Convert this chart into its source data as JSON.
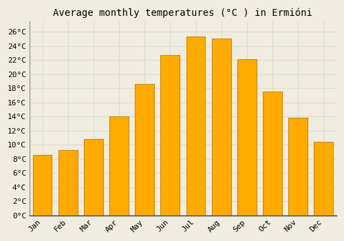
{
  "title": "Average monthly temperatures (°C ) in Ermióni",
  "months": [
    "Jan",
    "Feb",
    "Mar",
    "Apr",
    "May",
    "Jun",
    "Jul",
    "Aug",
    "Sep",
    "Oct",
    "Nov",
    "Dec"
  ],
  "temperatures": [
    8.6,
    9.2,
    10.8,
    14.0,
    18.6,
    22.7,
    25.3,
    25.1,
    22.1,
    17.5,
    13.8,
    10.4
  ],
  "bar_color": "#FFAA00",
  "bar_edge_color": "#CC8800",
  "background_color": "#f0ede0",
  "plot_bg_color": "#f0ede0",
  "grid_color": "#ddddcc",
  "ytick_labels": [
    "0°C",
    "2°C",
    "4°C",
    "6°C",
    "8°C",
    "10°C",
    "12°C",
    "14°C",
    "16°C",
    "18°C",
    "20°C",
    "22°C",
    "24°C",
    "26°C"
  ],
  "ytick_values": [
    0,
    2,
    4,
    6,
    8,
    10,
    12,
    14,
    16,
    18,
    20,
    22,
    24,
    26
  ],
  "ylim": [
    0,
    27.5
  ],
  "title_fontsize": 10,
  "tick_fontsize": 8,
  "font_family": "monospace"
}
